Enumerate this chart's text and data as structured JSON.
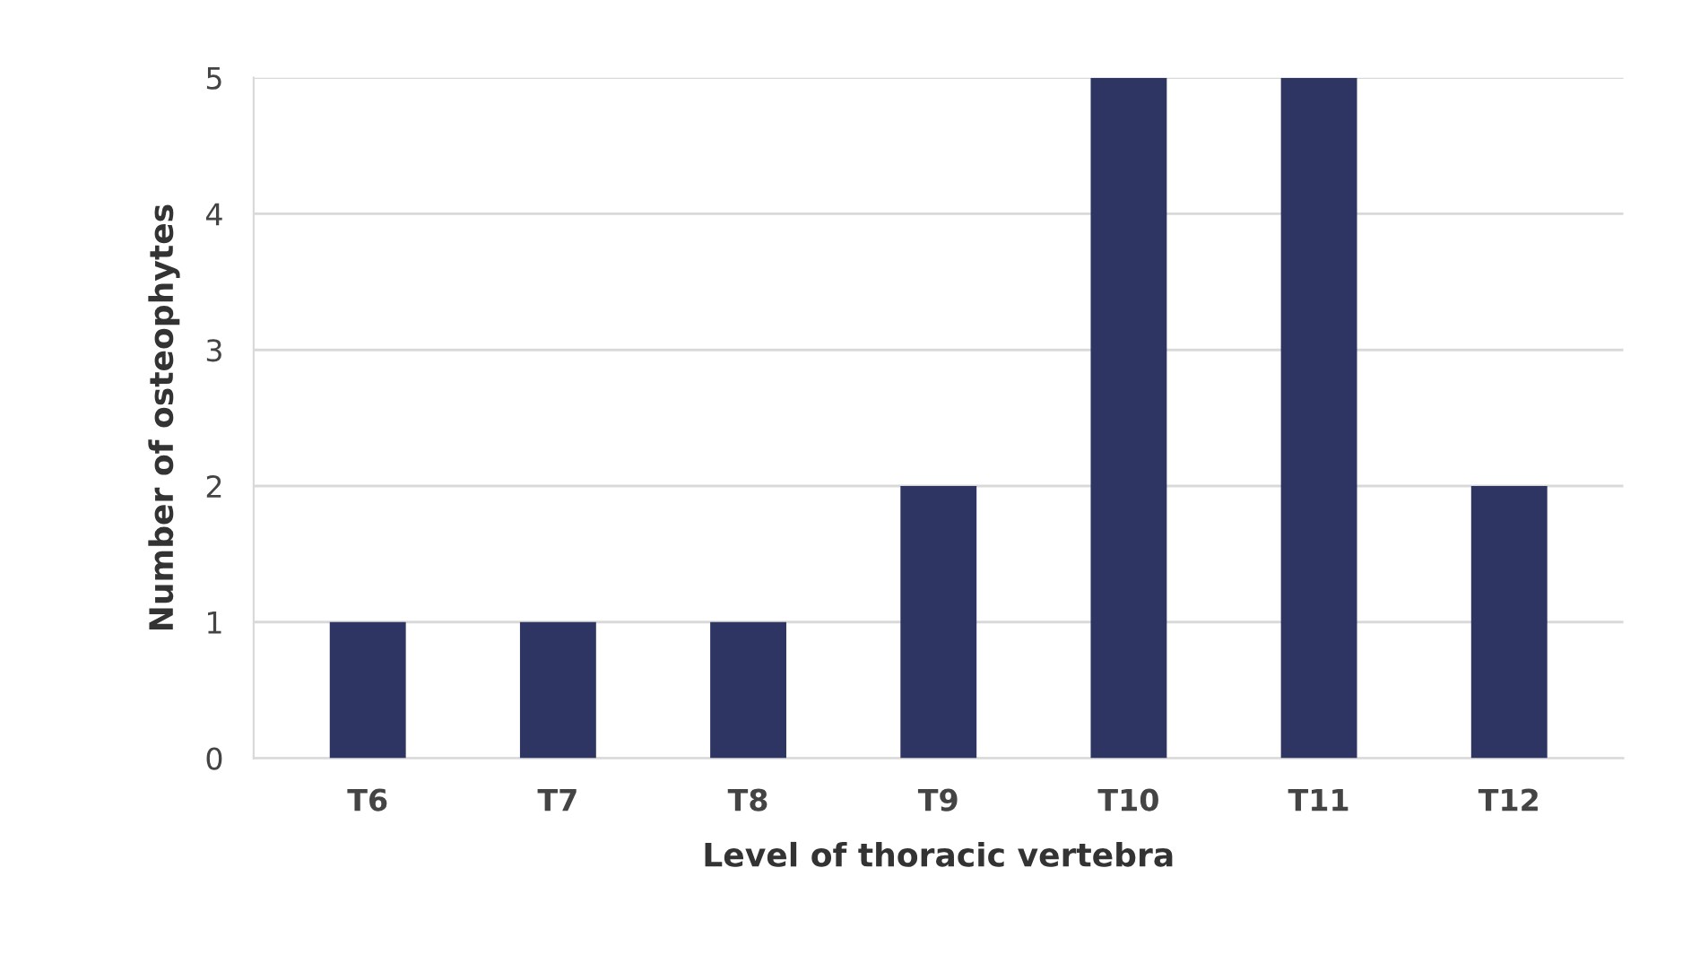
{
  "chart_data": {
    "type": "bar",
    "xlabel": "Level of thoracic vertebra",
    "ylabel": "Number of osteophytes",
    "categories": [
      "T6",
      "T7",
      "T8",
      "T9",
      "T10",
      "T11",
      "T12"
    ],
    "values": [
      1,
      1,
      1,
      2,
      5,
      5,
      2
    ],
    "color": "#2e3563",
    "ylim": [
      0,
      5
    ],
    "yticks": [
      0,
      1,
      2,
      3,
      4,
      5
    ],
    "grid": "y",
    "legend": false
  }
}
